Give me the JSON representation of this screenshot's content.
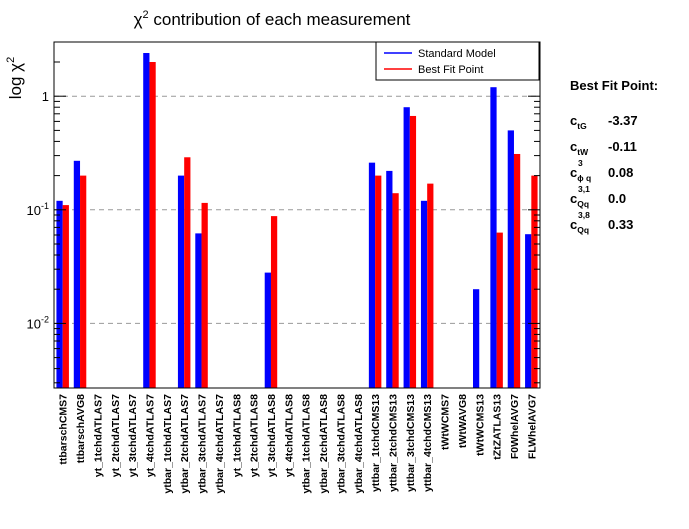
{
  "chart_data": {
    "type": "bar",
    "title": "χ² contribution of each measurement",
    "ylabel": "log χ²",
    "yscale": "log",
    "ylim": [
      0.0027,
      3.0
    ],
    "yticks": [
      {
        "value": 0.01,
        "base": "10",
        "exp": "-2"
      },
      {
        "value": 0.1,
        "base": "10",
        "exp": "-1"
      },
      {
        "value": 1,
        "base": "1",
        "exp": ""
      }
    ],
    "grid": "horizontal dashed at decades",
    "legend_position": "top-right",
    "categories": [
      "ttbarschCMS7",
      "ttbarschAVG8",
      "yt_1tchdATLAS7",
      "yt_2tchdATLAS7",
      "yt_3tchdATLAS7",
      "yt_4tchdATLAS7",
      "ytbar_1tchdATLAS7",
      "ytbar_2tchdATLAS7",
      "ytbar_3tchdATLAS7",
      "ytbar_4tchdATLAS7",
      "yt_1tchdATLAS8",
      "yt_2tchdATLAS8",
      "yt_3tchdATLAS8",
      "yt_4tchdATLAS8",
      "ytbar_1tchdATLAS8",
      "ytbar_2tchdATLAS8",
      "ytbar_3tchdATLAS8",
      "ytbar_4tchdATLAS8",
      "yttbar_1tchdCMS13",
      "yttbar_2tchdCMS13",
      "yttbar_3tchdCMS13",
      "yttbar_4tchdCMS13",
      "tWtWCMS7",
      "tWtWAVG8",
      "tWtWCMS13",
      "tZtZATLAS13",
      "F0WhelAVG7",
      "FLWhelAVG7"
    ],
    "series": [
      {
        "name": "Standard Model",
        "color": "#0000ff",
        "values": [
          0.12,
          0.27,
          null,
          null,
          null,
          2.4,
          null,
          0.2,
          0.062,
          null,
          null,
          null,
          0.028,
          null,
          null,
          null,
          null,
          null,
          0.26,
          0.22,
          0.8,
          0.12,
          null,
          null,
          0.02,
          1.2,
          0.5,
          0.061
        ]
      },
      {
        "name": "Best Fit Point",
        "color": "#ff0000",
        "values": [
          0.11,
          0.2,
          null,
          null,
          null,
          2.0,
          null,
          0.29,
          0.115,
          null,
          null,
          null,
          0.088,
          null,
          null,
          null,
          null,
          null,
          0.2,
          0.14,
          0.67,
          0.17,
          null,
          null,
          null,
          0.063,
          0.31,
          0.2
        ]
      }
    ]
  },
  "fit_panel": {
    "title": "Best Fit Point:",
    "params": [
      {
        "base": "c",
        "sub": "tG",
        "sup": "",
        "value": "-3.37"
      },
      {
        "base": "c",
        "sub": "tW",
        "sup": "",
        "value": "-0.11"
      },
      {
        "base": "c",
        "sub": "ϕ q",
        "sup": "3",
        "value": "0.08"
      },
      {
        "base": "c",
        "sub": "Qq",
        "sup": "3,1",
        "value": "0.0"
      },
      {
        "base": "c",
        "sub": "Qq",
        "sup": "3,8",
        "value": "0.33"
      }
    ]
  }
}
